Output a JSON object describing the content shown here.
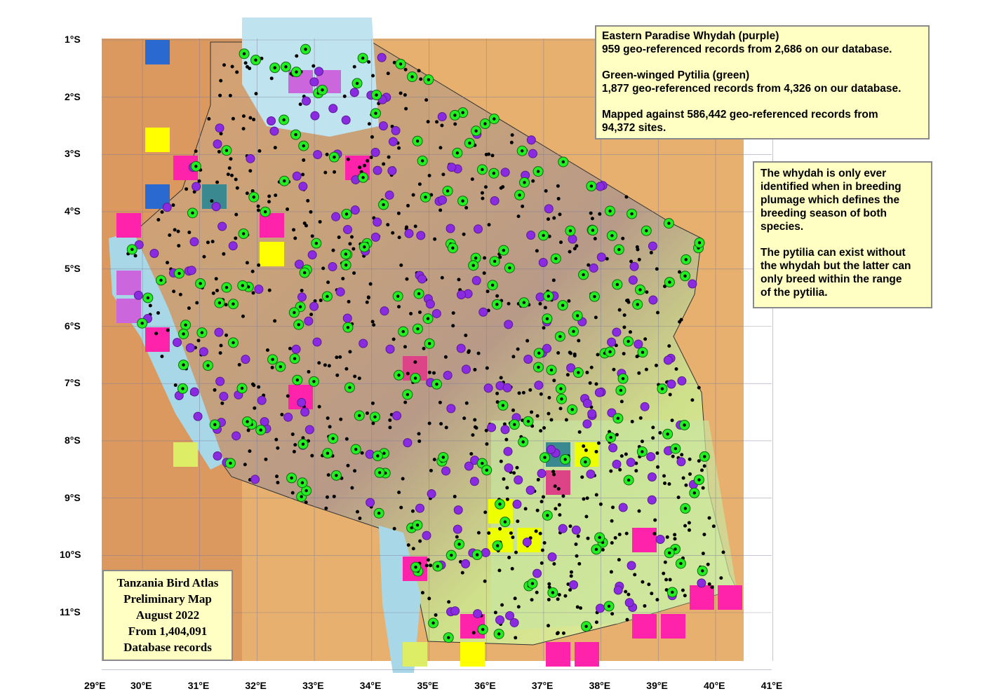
{
  "info_box": {
    "lines": [
      "Eastern Paradise Whydah (purple)",
      "959 geo-referenced records from 2,686 on our database.",
      "Green-winged Pytilia (green)",
      "1,877 geo-referenced records from 4,326 on our database.",
      "Mapped against 586,442  geo-referenced records from",
      "94,372 sites."
    ]
  },
  "note_box": {
    "lines": [
      "The whydah is only ever",
      "identified when in breeding",
      "plumage which defines the",
      "breeding season of both",
      "species.",
      "The pytilia can exist without",
      "the whydah but the latter can",
      "only breed within the range",
      "of the pytilia."
    ]
  },
  "atlas_box": {
    "lines": [
      "Tanzania Bird Atlas",
      "Preliminary Map",
      "August 2022",
      "From 1,404,091",
      "Database records"
    ]
  },
  "latitude_labels": [
    "1°S",
    "2°S",
    "3°S",
    "4°S",
    "5°S",
    "6°S",
    "7°S",
    "8°S",
    "9°S",
    "10°S",
    "11°S"
  ],
  "longitude_labels": [
    "29°E",
    "30°E",
    "31°E",
    "32°E",
    "33°E",
    "34°E",
    "35°E",
    "36°E",
    "37°E",
    "38°E",
    "39°E",
    "40°E",
    "41°E"
  ]
}
